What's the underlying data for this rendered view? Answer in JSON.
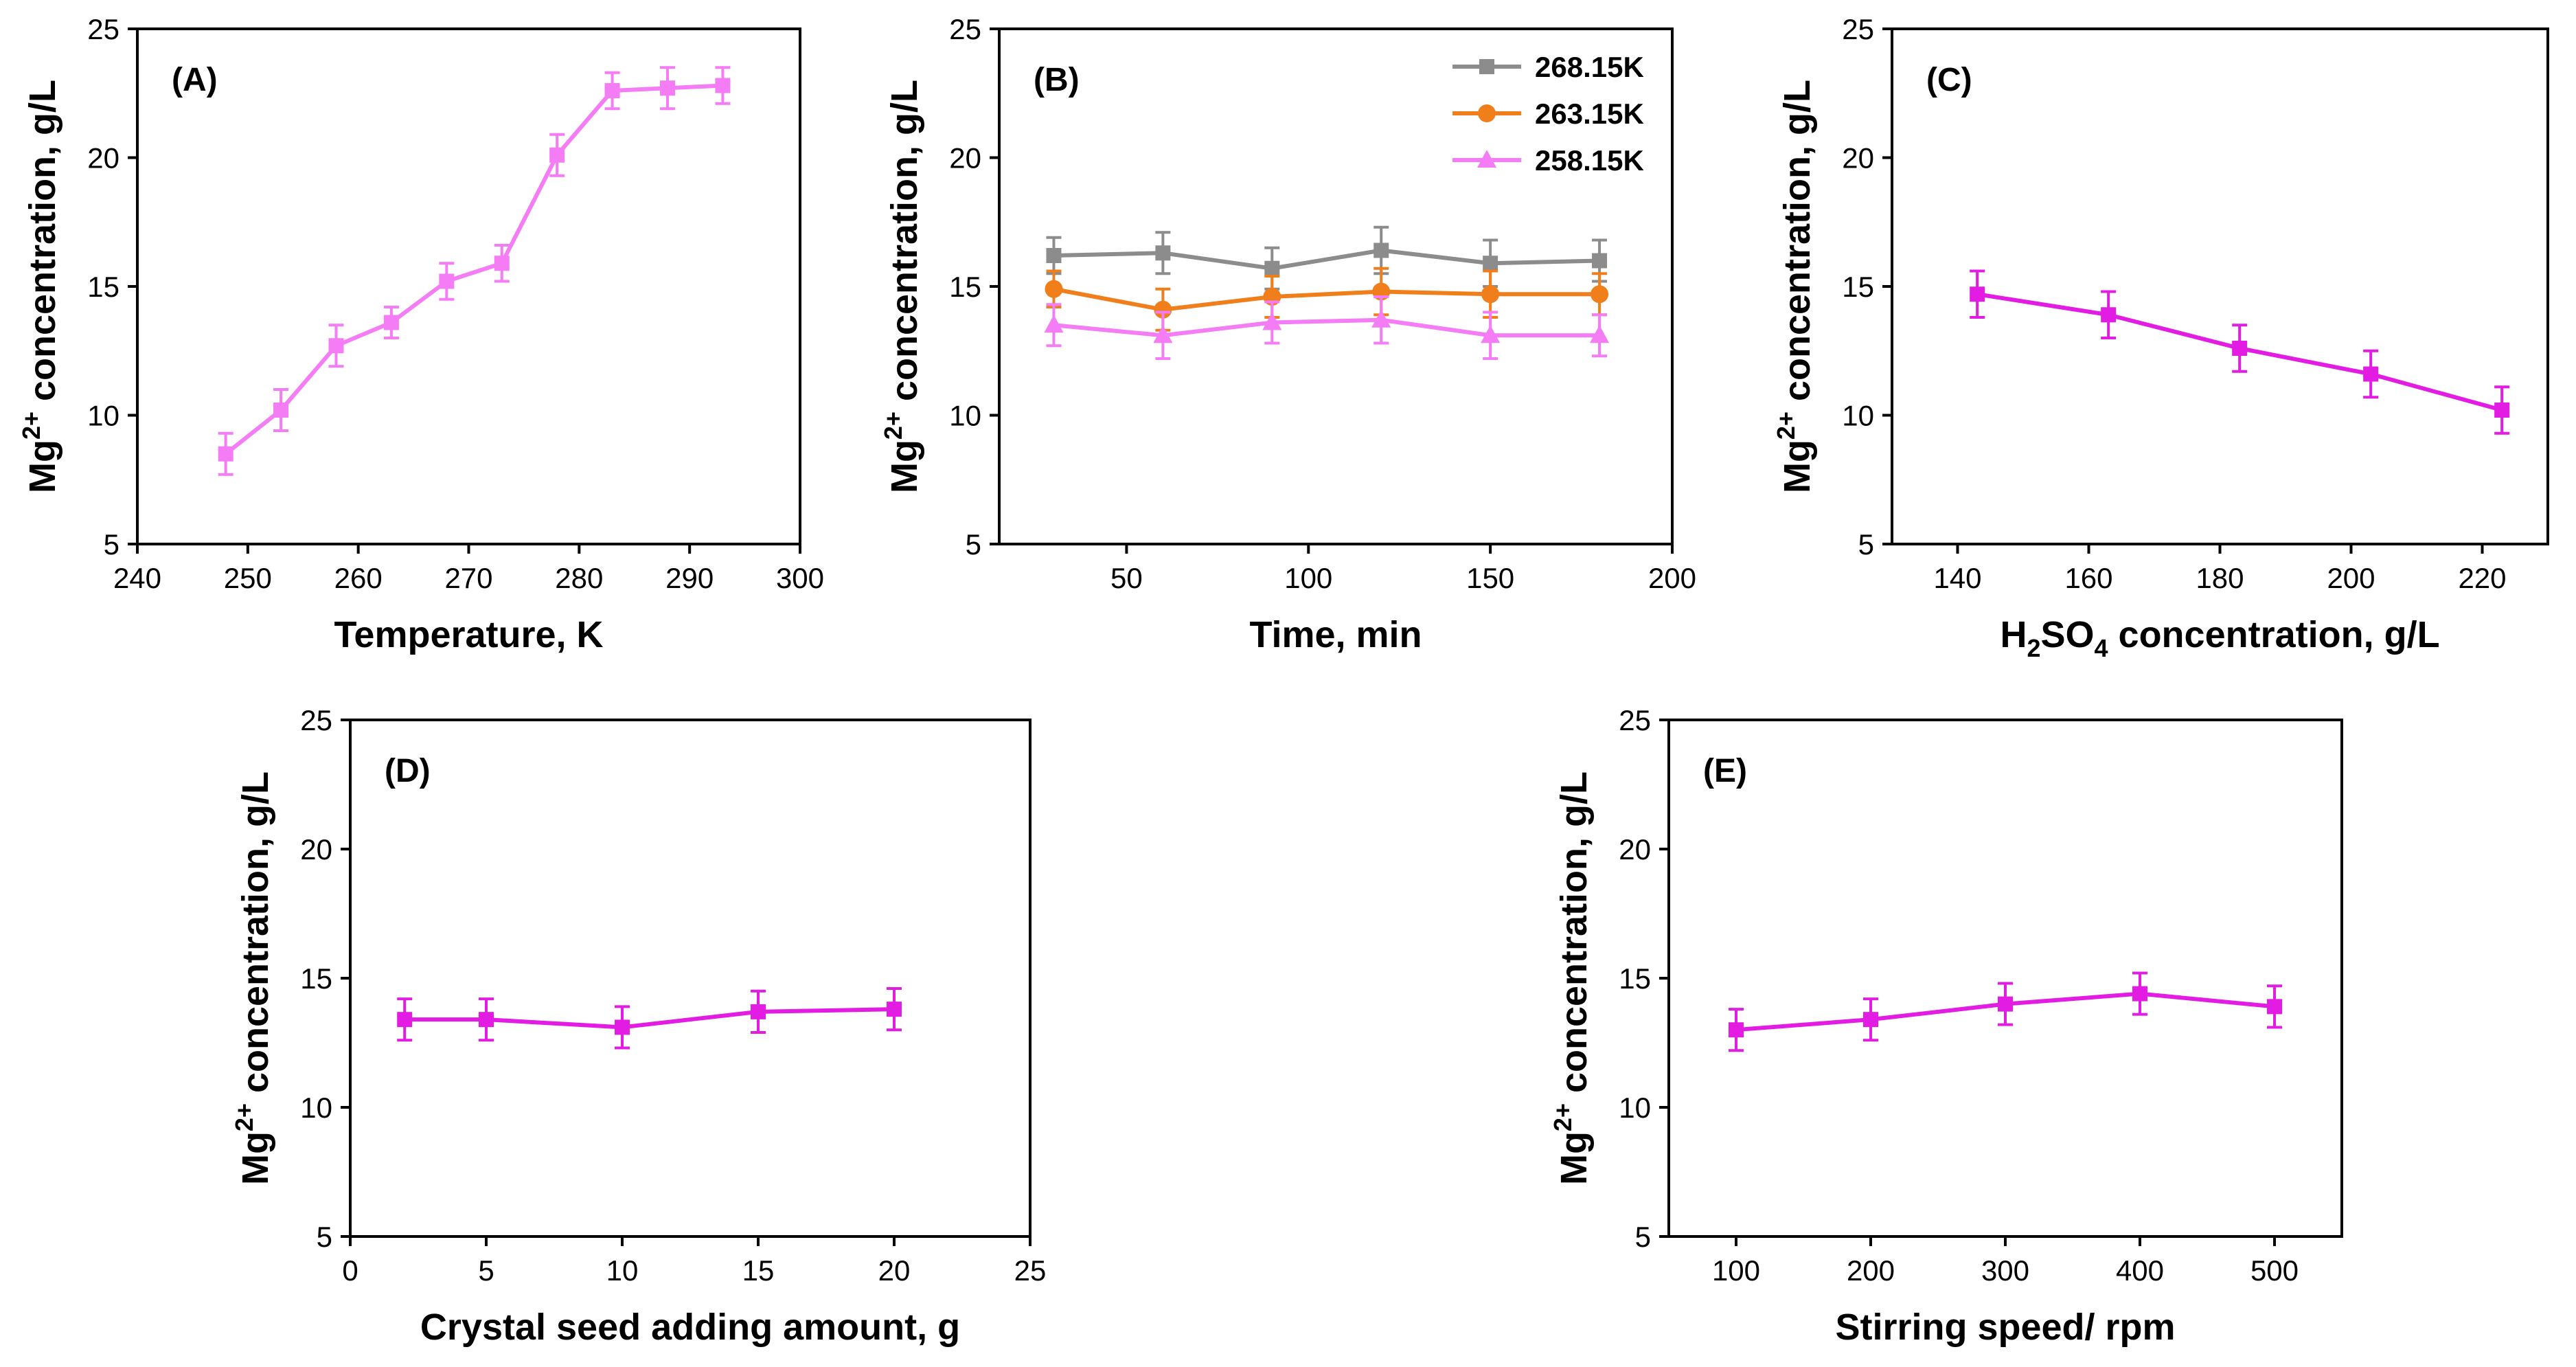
{
  "chart_data": [
    {
      "type": "line",
      "panel_label": "(A)",
      "xlabel": "Temperature, K",
      "ylabel_main": "Mg",
      "ylabel_sup": "2+",
      "ylabel_rest": " concentration, g/L",
      "xlim": [
        240,
        300
      ],
      "ylim": [
        5,
        25
      ],
      "xticks": [
        240,
        250,
        260,
        270,
        280,
        290,
        300
      ],
      "yticks": [
        5,
        10,
        15,
        20,
        25
      ],
      "series": [
        {
          "name": "Mg2+",
          "color": "#f47cf4",
          "marker": "square",
          "x": [
            248,
            253,
            258,
            263,
            268,
            273,
            278,
            283,
            288,
            293
          ],
          "y": [
            8.5,
            10.2,
            12.7,
            13.6,
            15.2,
            15.9,
            20.1,
            22.6,
            22.7,
            22.8
          ],
          "err": [
            0.8,
            0.8,
            0.8,
            0.6,
            0.7,
            0.7,
            0.8,
            0.7,
            0.8,
            0.7
          ]
        }
      ]
    },
    {
      "type": "line",
      "panel_label": "(B)",
      "xlabel": "Time, min",
      "ylabel_main": "Mg",
      "ylabel_sup": "2+",
      "ylabel_rest": " concentration, g/L",
      "xlim": [
        15,
        200
      ],
      "ylim": [
        5,
        25
      ],
      "xticks": [
        50,
        100,
        150,
        200
      ],
      "yticks": [
        5,
        10,
        15,
        20,
        25
      ],
      "legend": "top-right",
      "series": [
        {
          "name": "268.15K",
          "color": "#8c8c8c",
          "marker": "square",
          "x": [
            30,
            60,
            90,
            120,
            150,
            180
          ],
          "y": [
            16.2,
            16.3,
            15.7,
            16.4,
            15.9,
            16.0
          ],
          "err": [
            0.7,
            0.8,
            0.8,
            0.9,
            0.9,
            0.8
          ]
        },
        {
          "name": "263.15K",
          "color": "#f07e1a",
          "marker": "circle",
          "x": [
            30,
            60,
            90,
            120,
            150,
            180
          ],
          "y": [
            14.9,
            14.1,
            14.6,
            14.8,
            14.7,
            14.7
          ],
          "err": [
            0.7,
            0.8,
            0.8,
            0.9,
            0.9,
            0.8
          ]
        },
        {
          "name": "258.15K",
          "color": "#f47cf4",
          "marker": "triangle",
          "x": [
            30,
            60,
            90,
            120,
            150,
            180
          ],
          "y": [
            13.5,
            13.1,
            13.6,
            13.7,
            13.1,
            13.1
          ],
          "err": [
            0.8,
            0.9,
            0.8,
            0.9,
            0.9,
            0.8
          ]
        }
      ]
    },
    {
      "type": "line",
      "panel_label": "(C)",
      "xlabel_main": "H",
      "xlabel_sub1": "2",
      "xlabel_mid": "SO",
      "xlabel_sub2": "4",
      "xlabel_rest": " concentration, g/L",
      "ylabel_main": "Mg",
      "ylabel_sup": "2+",
      "ylabel_rest": " concentration, g/L",
      "xlim": [
        130,
        230
      ],
      "ylim": [
        5,
        25
      ],
      "xticks": [
        140,
        160,
        180,
        200,
        220
      ],
      "yticks": [
        5,
        10,
        15,
        20,
        25
      ],
      "series": [
        {
          "name": "Mg2+",
          "color": "#e31ce3",
          "marker": "square",
          "x": [
            143,
            163,
            183,
            203,
            223
          ],
          "y": [
            14.7,
            13.9,
            12.6,
            11.6,
            10.2
          ],
          "err": [
            0.9,
            0.9,
            0.9,
            0.9,
            0.9
          ]
        }
      ]
    },
    {
      "type": "line",
      "panel_label": "(D)",
      "xlabel": "Crystal seed adding amount, g",
      "ylabel_main": "Mg",
      "ylabel_sup": "2+",
      "ylabel_rest": " concentration, g/L",
      "xlim": [
        0,
        25
      ],
      "ylim": [
        5,
        25
      ],
      "xticks": [
        0,
        5,
        10,
        15,
        20,
        25
      ],
      "yticks": [
        5,
        10,
        15,
        20,
        25
      ],
      "series": [
        {
          "name": "Mg2+",
          "color": "#e31ce3",
          "marker": "square",
          "x": [
            2,
            5,
            10,
            15,
            20
          ],
          "y": [
            13.4,
            13.4,
            13.1,
            13.7,
            13.8
          ],
          "err": [
            0.8,
            0.8,
            0.8,
            0.8,
            0.8
          ]
        }
      ]
    },
    {
      "type": "line",
      "panel_label": "(E)",
      "xlabel": "Stirring speed/ rpm",
      "ylabel_main": "Mg",
      "ylabel_sup": "2+",
      "ylabel_rest": " concentration, g/L",
      "xlim": [
        50,
        550
      ],
      "ylim": [
        5,
        25
      ],
      "xticks": [
        100,
        200,
        300,
        400,
        500
      ],
      "yticks": [
        5,
        10,
        15,
        20,
        25
      ],
      "series": [
        {
          "name": "Mg2+",
          "color": "#e31ce3",
          "marker": "square",
          "x": [
            100,
            200,
            300,
            400,
            500
          ],
          "y": [
            13.0,
            13.4,
            14.0,
            14.4,
            13.9
          ],
          "err": [
            0.8,
            0.8,
            0.8,
            0.8,
            0.8
          ]
        }
      ]
    }
  ]
}
